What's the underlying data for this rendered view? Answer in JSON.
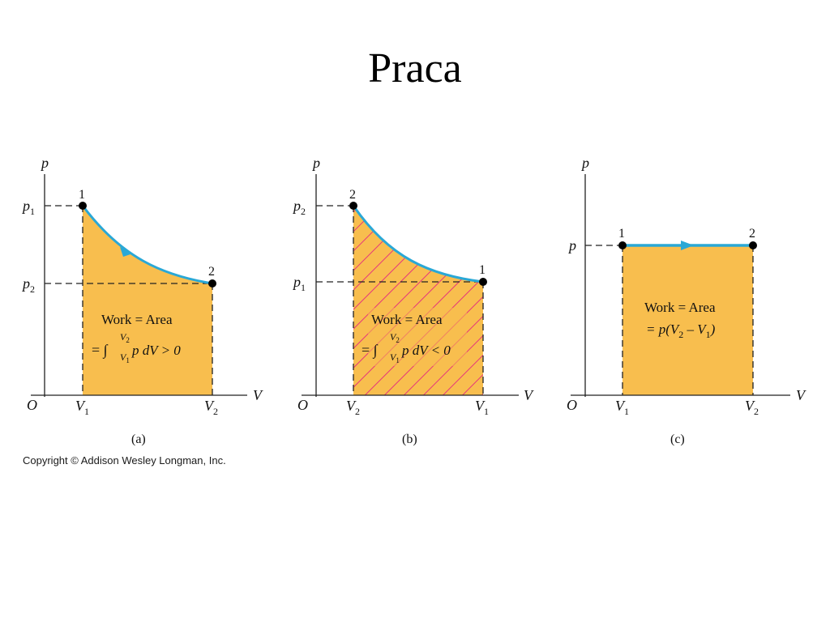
{
  "title": "Praca",
  "copyright": "Copyright © Addison Wesley Longman, Inc.",
  "colors": {
    "fill": "#F8BE4E",
    "curve": "#2AA8D6",
    "hatch": "#E6357A",
    "axis": "#222222",
    "point": "#000000"
  },
  "panels": {
    "a": {
      "caption": "(a)",
      "axis_y": "p",
      "axis_x": "V",
      "origin": "O",
      "y_upper": "p",
      "y_upper_sub": "1",
      "y_lower": "p",
      "y_lower_sub": "2",
      "x_left": "V",
      "x_left_sub": "1",
      "x_right": "V",
      "x_right_sub": "2",
      "point_start": "1",
      "point_end": "2",
      "area_line1": "Work = Area",
      "area_eq": "= ∫",
      "area_int_upper": "V",
      "area_int_upper_sub": "2",
      "area_int_lower": "V",
      "area_int_lower_sub": "1",
      "area_integrand": " p dV > 0"
    },
    "b": {
      "caption": "(b)",
      "axis_y": "p",
      "axis_x": "V",
      "origin": "O",
      "y_upper": "p",
      "y_upper_sub": "2",
      "y_lower": "p",
      "y_lower_sub": "1",
      "x_left": "V",
      "x_left_sub": "2",
      "x_right": "V",
      "x_right_sub": "1",
      "point_start": "2",
      "point_end": "1",
      "area_line1": "Work = Area",
      "area_eq": "= ∫",
      "area_int_upper": "V",
      "area_int_upper_sub": "2",
      "area_int_lower": "V",
      "area_int_lower_sub": "1",
      "area_integrand": " p dV < 0"
    },
    "c": {
      "caption": "(c)",
      "axis_y": "p",
      "axis_x": "V",
      "origin": "O",
      "y_level": "p",
      "x_left": "V",
      "x_left_sub": "1",
      "x_right": "V",
      "x_right_sub": "2",
      "point_start": "1",
      "point_end": "2",
      "area_line1": "Work = Area",
      "area_line2_a": "= p(V",
      "area_line2_sub1": "2",
      "area_line2_b": " – V",
      "area_line2_sub2": "1",
      "area_line2_c": ")"
    }
  }
}
